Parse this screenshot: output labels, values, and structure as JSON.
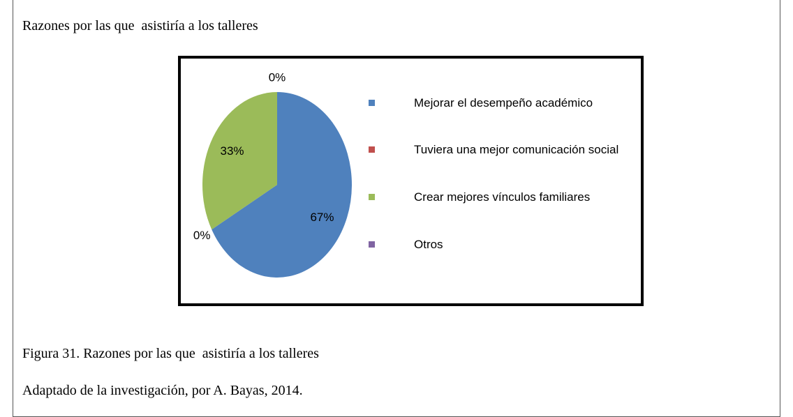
{
  "heading": "Razones por las que  asistiría a los talleres",
  "chart_data": {
    "type": "pie",
    "categories": [
      "Mejorar el desempeño académico",
      "Tuviera una mejor comunicación social",
      "Crear mejores vínculos familiares",
      "Otros"
    ],
    "values": [
      67,
      0,
      33,
      0
    ],
    "value_labels": [
      "67%",
      "0%",
      "33%",
      "0%"
    ],
    "colors": [
      "#4f81bd",
      "#c0504d",
      "#9bbb59",
      "#8064a2"
    ]
  },
  "caption": "Figura 31. Razones por las que  asistiría a los talleres",
  "source": "Adaptado de la investigación, por A. Bayas, 2014."
}
